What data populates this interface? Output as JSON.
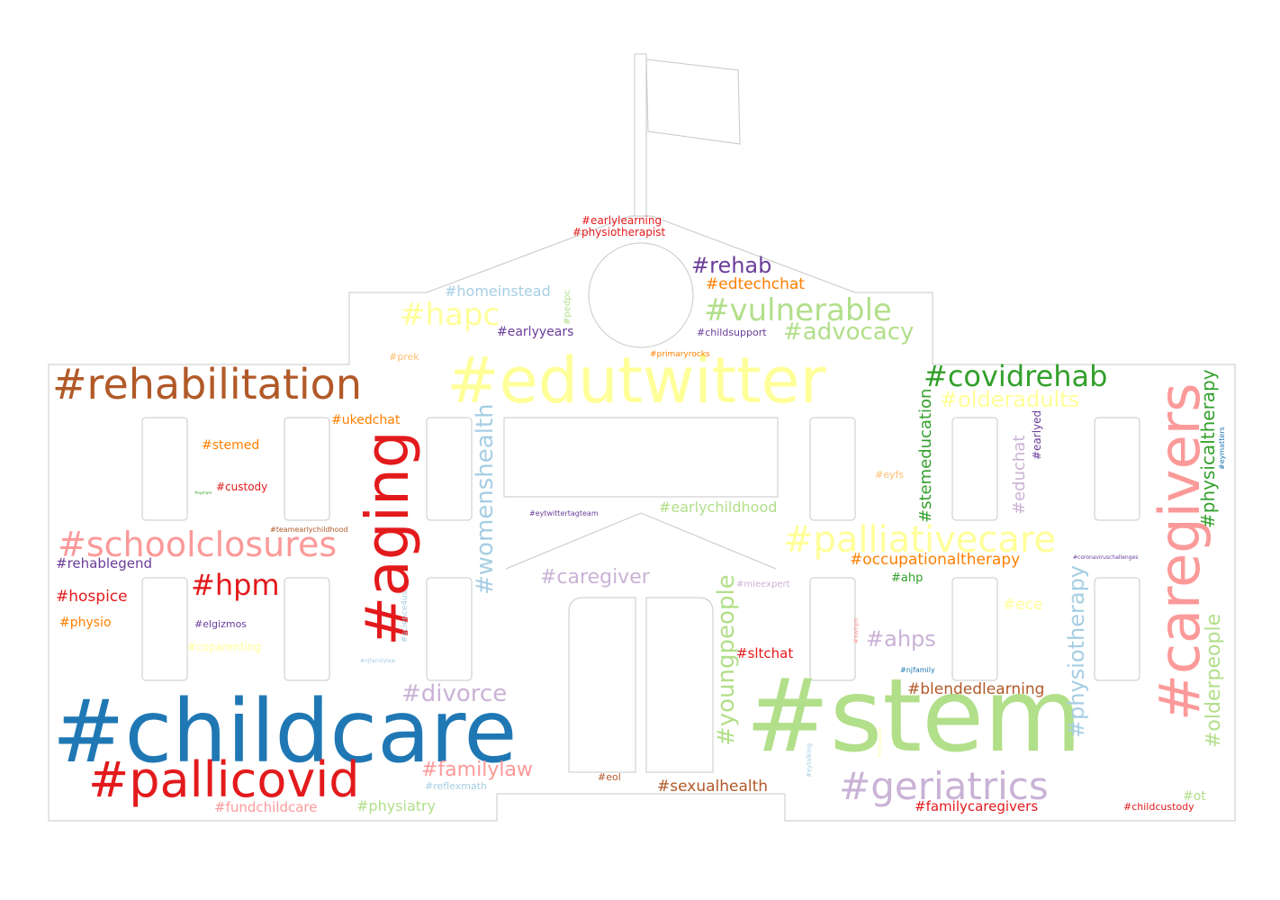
{
  "colors": {
    "outline": "#c8c8c8",
    "background": "#ffffff"
  },
  "words": [
    {
      "text": "#edutwitter",
      "color": "#ffff99"
    },
    {
      "text": "#childcare",
      "color": "#1f78b4"
    },
    {
      "text": "#stem",
      "color": "#b2df8a"
    },
    {
      "text": "#caregivers",
      "color": "#fb9a99"
    },
    {
      "text": "#aging",
      "color": "#e31a1c"
    },
    {
      "text": "#pallicovid",
      "color": "#e31a1c"
    },
    {
      "text": "#rehabilitation",
      "color": "#b15928"
    },
    {
      "text": "#schoolclosures",
      "color": "#fb9a99"
    },
    {
      "text": "#geriatrics",
      "color": "#cab2d6"
    },
    {
      "text": "#palliativecare",
      "color": "#ffff99"
    },
    {
      "text": "#covidrehab",
      "color": "#33a02c"
    },
    {
      "text": "#womenshealth",
      "color": "#a6cee3"
    },
    {
      "text": "#youngpeople",
      "color": "#b2df8a"
    },
    {
      "text": "#vulnerable",
      "color": "#b2df8a"
    },
    {
      "text": "#hapc",
      "color": "#ffff99"
    },
    {
      "text": "#physiotherapy",
      "color": "#a6cee3"
    },
    {
      "text": "#hpm",
      "color": "#e31a1c"
    },
    {
      "text": "#olderpeople",
      "color": "#b2df8a"
    },
    {
      "text": "#physicaltherapy",
      "color": "#33a02c"
    },
    {
      "text": "#advocacy",
      "color": "#b2df8a"
    },
    {
      "text": "#olderadults",
      "color": "#ffff99"
    },
    {
      "text": "#divorce",
      "color": "#cab2d6"
    },
    {
      "text": "#familylaw",
      "color": "#fb9a99"
    },
    {
      "text": "#rehab",
      "color": "#6a3d9a"
    },
    {
      "text": "#ahps",
      "color": "#cab2d6"
    },
    {
      "text": "#caregiver",
      "color": "#cab2d6"
    },
    {
      "text": "#stemeducation",
      "color": "#33a02c"
    },
    {
      "text": "#educhat",
      "color": "#cab2d6"
    },
    {
      "text": "#homeinstead",
      "color": "#a6cee3"
    },
    {
      "text": "#earlychildhood",
      "color": "#b2df8a"
    },
    {
      "text": "#edtechchat",
      "color": "#ff7f00"
    },
    {
      "text": "#occupationaltherapy",
      "color": "#ff7f00"
    },
    {
      "text": "#blendedlearning",
      "color": "#b15928"
    },
    {
      "text": "#sexualhealth",
      "color": "#b15928"
    },
    {
      "text": "#ece",
      "color": "#ffff99"
    },
    {
      "text": "#hospice",
      "color": "#e31a1c"
    },
    {
      "text": "#rehablegend",
      "color": "#6a3d9a"
    },
    {
      "text": "#ukedchat",
      "color": "#ff7f00"
    },
    {
      "text": "#stemed",
      "color": "#ff7f00"
    },
    {
      "text": "#earlyyears",
      "color": "#6a3d9a"
    },
    {
      "text": "#physio",
      "color": "#ff7f00"
    },
    {
      "text": "#physiatry",
      "color": "#b2df8a"
    },
    {
      "text": "#fundchildcare",
      "color": "#fb9a99"
    },
    {
      "text": "#familycaregivers",
      "color": "#e31a1c"
    },
    {
      "text": "#sltchat",
      "color": "#e31a1c"
    },
    {
      "text": "#custody",
      "color": "#e31a1c"
    },
    {
      "text": "#earlylearning",
      "color": "#e31a1c"
    },
    {
      "text": "#physiotherapist",
      "color": "#e31a1c"
    },
    {
      "text": "#earlyed",
      "color": "#6a3d9a"
    },
    {
      "text": "#ot",
      "color": "#b2df8a"
    },
    {
      "text": "#coparenting",
      "color": "#ffff99"
    },
    {
      "text": "#ahp",
      "color": "#33a02c"
    },
    {
      "text": "#elgizmos",
      "color": "#6a3d9a"
    },
    {
      "text": "#reflexmath",
      "color": "#a6cee3"
    },
    {
      "text": "#childsupport",
      "color": "#6a3d9a"
    },
    {
      "text": "#childcustody",
      "color": "#e31a1c"
    },
    {
      "text": "#eol",
      "color": "#b15928"
    },
    {
      "text": "#eyfs",
      "color": "#fdbf6f"
    },
    {
      "text": "#prek",
      "color": "#fdbf6f"
    },
    {
      "text": "#science4us",
      "color": "#a6cee3"
    },
    {
      "text": "#mieexpert",
      "color": "#cab2d6"
    },
    {
      "text": "#pedpc",
      "color": "#b2df8a"
    },
    {
      "text": "#eymatters",
      "color": "#1f78b4"
    },
    {
      "text": "#primaryrocks",
      "color": "#ff7f00"
    },
    {
      "text": "#eytwittertagteam",
      "color": "#6a3d9a"
    },
    {
      "text": "#njfamily",
      "color": "#1f78b4"
    },
    {
      "text": "#teamearlychildhood",
      "color": "#b15928"
    },
    {
      "text": "#coronaviruschallenges",
      "color": "#6a3d9a"
    },
    {
      "text": "#swhpn",
      "color": "#fb9a99"
    },
    {
      "text": "#eytalking",
      "color": "#a6cee3"
    },
    {
      "text": "#njfamilylaw",
      "color": "#a6cee3"
    },
    {
      "text": "#ivorypanels",
      "color": "#ffff99"
    },
    {
      "text": "#eyshare",
      "color": "#33a02c"
    }
  ]
}
